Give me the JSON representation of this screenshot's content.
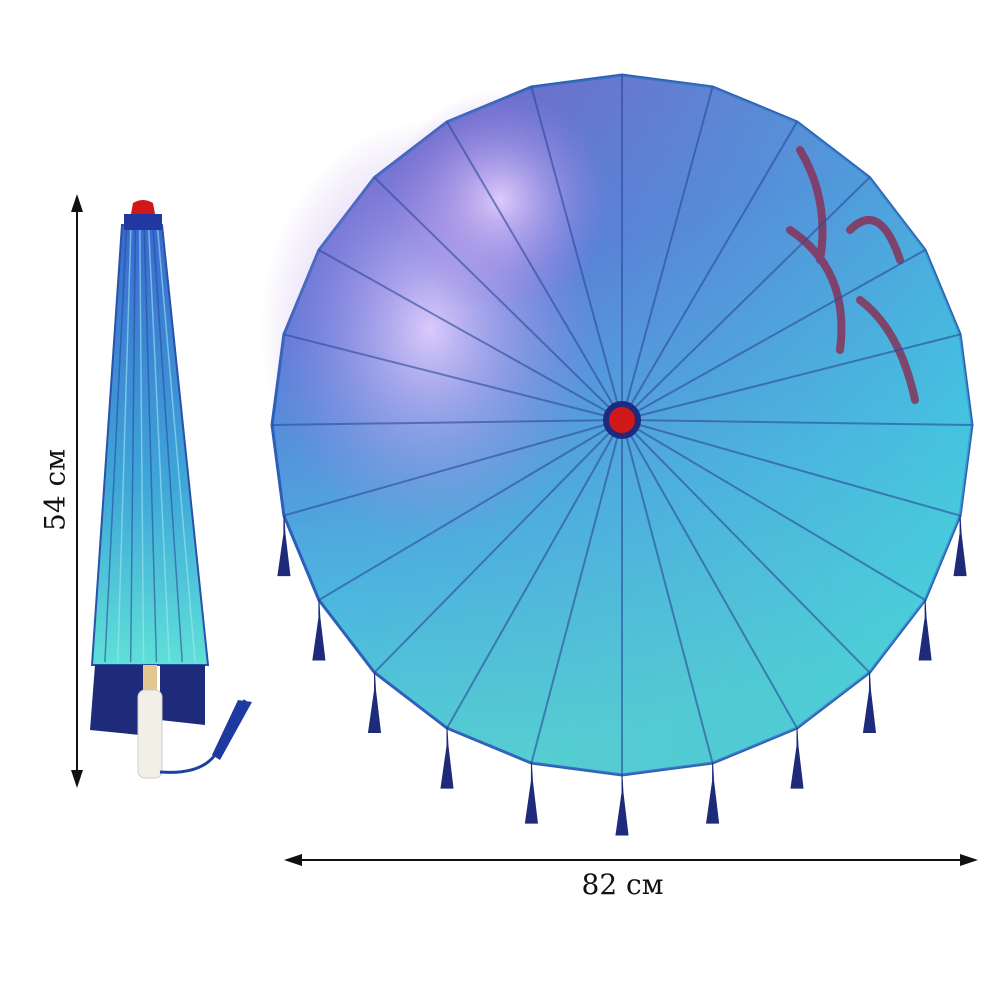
{
  "dimensions": {
    "height_label": "54 см",
    "width_label": "82 см"
  },
  "colors": {
    "canopy_top": "#7a63c9",
    "canopy_mid": "#4f8fe0",
    "canopy_bottom": "#4fd6d2",
    "ribs": "#2a4a9a",
    "tassel": "#1e2a7a",
    "cap": "#d01818",
    "blossom": "#c9a6ee"
  }
}
